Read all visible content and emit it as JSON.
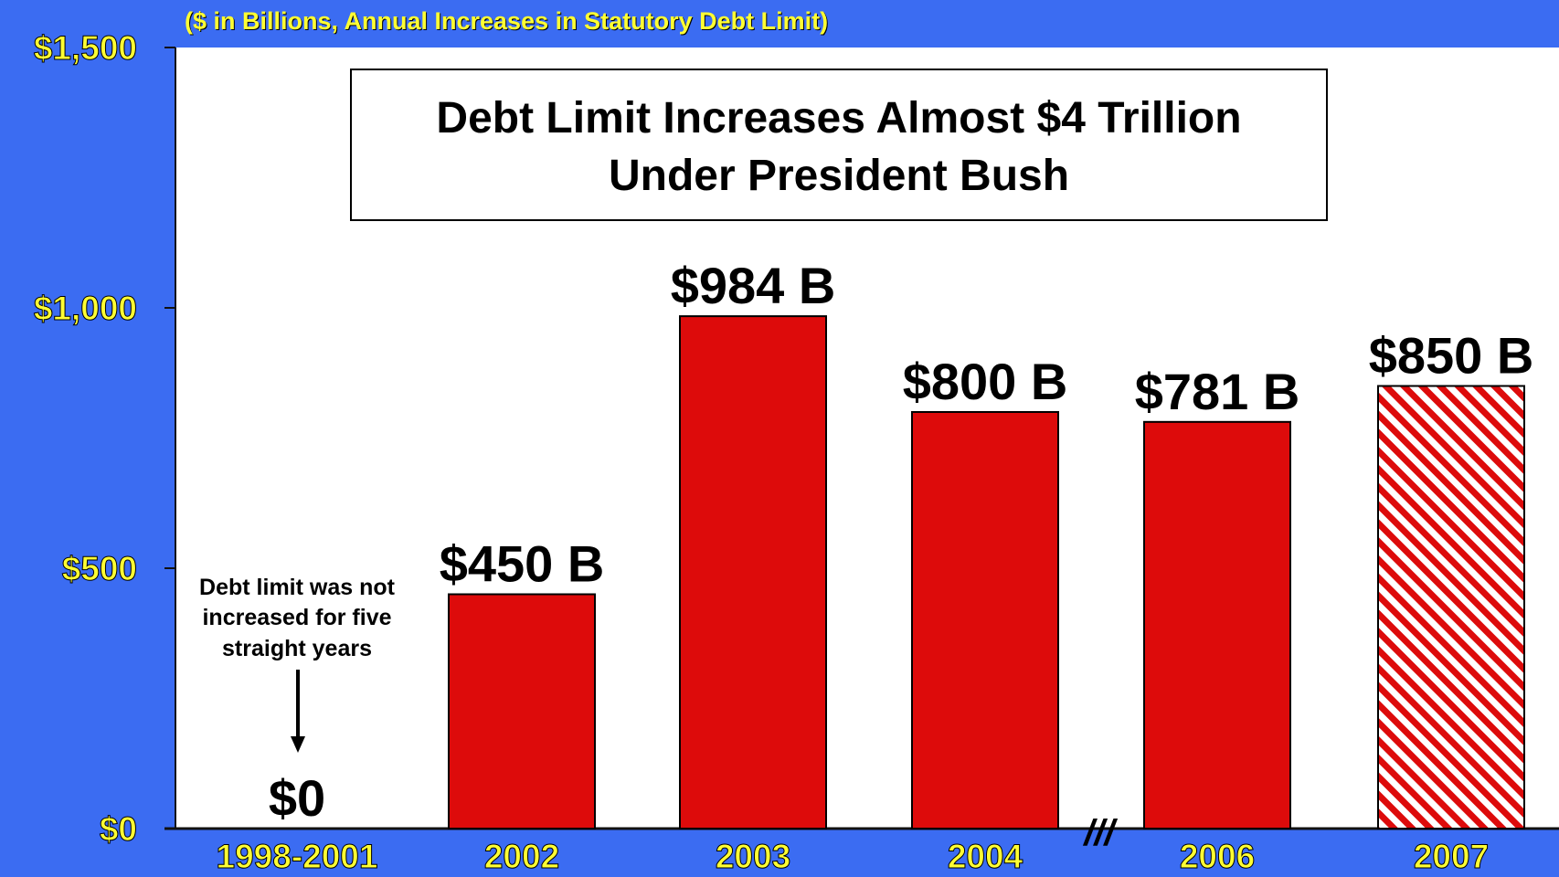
{
  "colors": {
    "background": "#3b6cf2",
    "plot_area": "#ffffff",
    "bar": "#dd0b0b",
    "axis_text": "#ffff33",
    "label_text": "#000000"
  },
  "chart_data": {
    "type": "bar",
    "subtitle": "($ in Billions, Annual Increases in Statutory Debt Limit)",
    "title_lines": [
      "Debt Limit Increases Almost $4 Trillion",
      "Under President Bush"
    ],
    "categories": [
      "1998-2001",
      "2002",
      "2003",
      "2004",
      "2006",
      "2007"
    ],
    "values": [
      0,
      450,
      984,
      800,
      781,
      850
    ],
    "value_labels": [
      "$0",
      "$450 B",
      "$984 B",
      "$800 B",
      "$781 B",
      "$850 B"
    ],
    "bar_styles": [
      "none",
      "solid",
      "solid",
      "solid",
      "solid",
      "hatched"
    ],
    "ylim": [
      0,
      1500
    ],
    "yticks": [
      0,
      500,
      1000,
      1500
    ],
    "ytick_labels": [
      "$0",
      "$500",
      "$1,000",
      "$1,500"
    ],
    "axis_break_marker": "///",
    "annotation": {
      "lines": [
        "Debt limit was not",
        "increased for five",
        "straight years"
      ]
    },
    "grid": false,
    "legend": "none"
  }
}
